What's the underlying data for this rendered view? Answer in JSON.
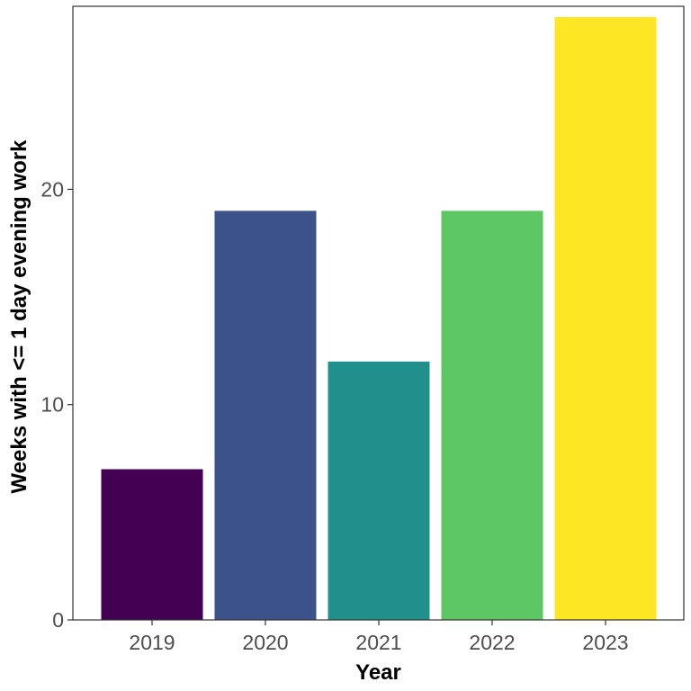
{
  "chart_data": {
    "type": "bar",
    "title": "",
    "xlabel": "Year",
    "ylabel": "Weeks with <= 1 day evening work",
    "categories": [
      "2019",
      "2020",
      "2021",
      "2022",
      "2023"
    ],
    "values": [
      7,
      19,
      12,
      19,
      28
    ],
    "colors": [
      "#440154",
      "#3b528b",
      "#21908c",
      "#5dc863",
      "#fde725"
    ],
    "ylim": [
      0,
      28.5
    ],
    "yticks": [
      0,
      10,
      20
    ],
    "grid": false,
    "legend": "none"
  }
}
